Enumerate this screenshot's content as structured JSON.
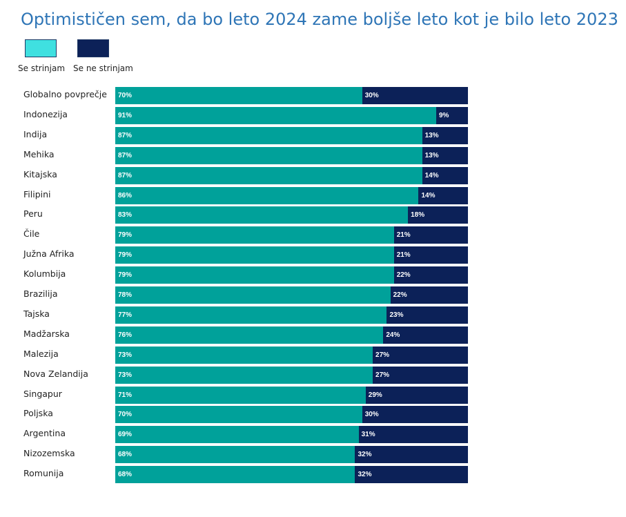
{
  "chart_data": {
    "type": "bar",
    "orientation": "horizontal",
    "stacked": true,
    "title": "Optimističen sem, da bo leto 2024 zame boljše leto kot je bilo leto 2023",
    "legend_position": "top-left",
    "xlim": [
      0,
      100
    ],
    "categories": [
      "Globalno povprečje",
      "Indonezija",
      "Indija",
      "Mehika",
      "Kitajska",
      "Filipini",
      "Peru",
      "Čile",
      "Južna Afrika",
      "Kolumbija",
      "Brazilija",
      "Tajska",
      "Madžarska",
      "Malezija",
      "Nova Zelandija",
      "Singapur",
      "Poljska",
      "Argentina",
      "Nizozemska",
      "Romunija"
    ],
    "series": [
      {
        "name": "Se strinjam",
        "color": "#00a19a",
        "values": [
          70,
          91,
          87,
          87,
          87,
          86,
          83,
          79,
          79,
          79,
          78,
          77,
          76,
          73,
          73,
          71,
          70,
          69,
          68,
          68
        ],
        "labels": [
          "70%",
          "91%",
          "87%",
          "87%",
          "87%",
          "86%",
          "83%",
          "79%",
          "79%",
          "79%",
          "78%",
          "77%",
          "76%",
          "73%",
          "73%",
          "71%",
          "70%",
          "69%",
          "68%",
          "68%"
        ]
      },
      {
        "name": "Se ne strinjam",
        "color": "#0c2158",
        "values": [
          30,
          9,
          13,
          13,
          14,
          14,
          18,
          21,
          21,
          22,
          22,
          23,
          24,
          27,
          27,
          29,
          30,
          31,
          32,
          32
        ],
        "labels": [
          "30%",
          "9%",
          "13%",
          "13%",
          "14%",
          "14%",
          "18%",
          "21%",
          "21%",
          "22%",
          "22%",
          "23%",
          "24%",
          "27%",
          "27%",
          "29%",
          "30%",
          "31%",
          "32%",
          "32%"
        ]
      }
    ]
  },
  "legend": {
    "agree_color": "#3fe0e0",
    "disagree_color": "#0c2158"
  }
}
